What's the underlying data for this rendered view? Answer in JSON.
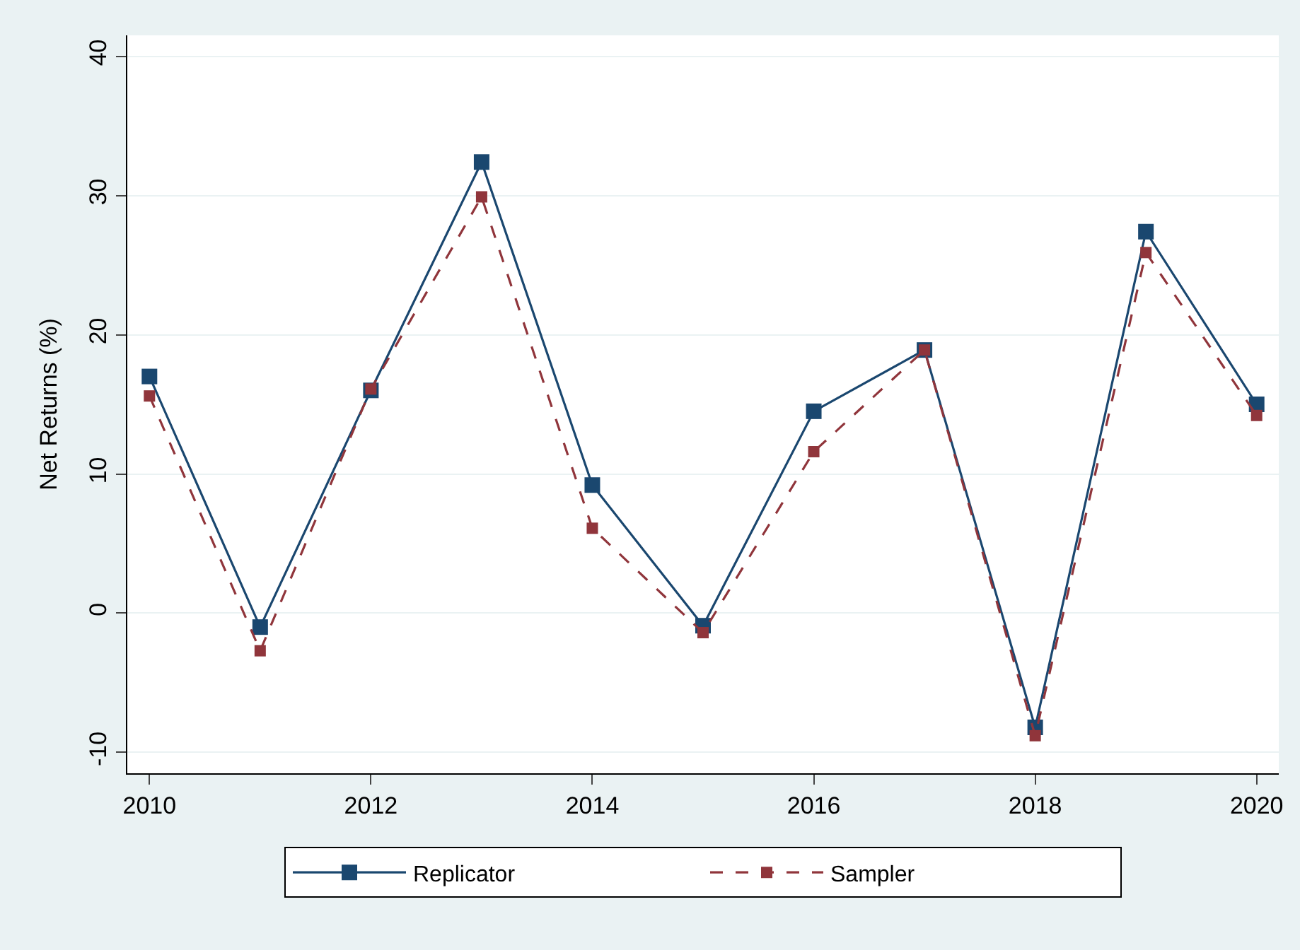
{
  "chart_data": {
    "type": "line",
    "ylabel": "Net Returns (%)",
    "x": [
      2010,
      2011,
      2012,
      2013,
      2014,
      2015,
      2016,
      2017,
      2018,
      2019,
      2020
    ],
    "series": [
      {
        "name": "Replicator",
        "color": "#1a476f",
        "values": [
          17.0,
          -1.0,
          16.0,
          32.4,
          9.2,
          -0.9,
          14.5,
          18.9,
          -8.2,
          27.4,
          15.0
        ],
        "line_style": "solid"
      },
      {
        "name": "Sampler",
        "color": "#90353b",
        "values": [
          15.6,
          -2.7,
          16.1,
          29.9,
          6.1,
          -1.4,
          11.6,
          18.9,
          -8.8,
          25.9,
          14.2
        ],
        "line_style": "dashed"
      }
    ],
    "xlim": [
      2009.8,
      2020.2
    ],
    "xticks": [
      2010,
      2012,
      2014,
      2016,
      2018,
      2020
    ],
    "ylim": [
      -11.5,
      41.5
    ],
    "yticks": [
      -10,
      0,
      10,
      20,
      30,
      40
    ],
    "grid": "y",
    "legend": "bottom",
    "marker": "square"
  }
}
